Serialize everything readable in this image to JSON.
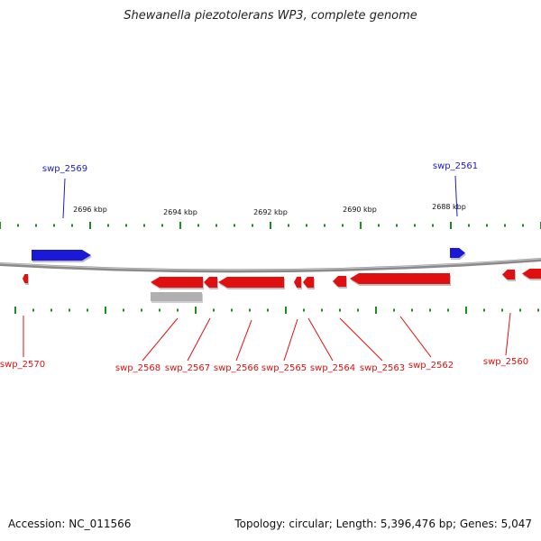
{
  "title": "Shewanella piezotolerans WP3, complete genome",
  "footer": {
    "accession": "Accession: NC_011566",
    "summary": "Topology: circular; Length: 5,396,476 bp; Genes: 5,047"
  },
  "colors": {
    "forward": "#1a1ad6",
    "reverse": "#e01010",
    "other": "#b0b0b0",
    "tick": "#1f8a1f",
    "backbone": "#808080"
  },
  "ticks": [
    "2696 kbp",
    "2694 kbp",
    "2692 kbp",
    "2690 kbp",
    "2688 kbp"
  ],
  "genes": [
    {
      "label": "swp_2569",
      "strand": "+"
    },
    {
      "label": "swp_2561",
      "strand": "+"
    },
    {
      "label": "swp_2570",
      "strand": "-"
    },
    {
      "label": "swp_2568",
      "strand": "-"
    },
    {
      "label": "swp_2567",
      "strand": "-"
    },
    {
      "label": "swp_2566",
      "strand": "-"
    },
    {
      "label": "swp_2565",
      "strand": "-"
    },
    {
      "label": "swp_2564",
      "strand": "-"
    },
    {
      "label": "swp_2563",
      "strand": "-"
    },
    {
      "label": "swp_2562",
      "strand": "-"
    },
    {
      "label": "swp_2560",
      "strand": "-"
    }
  ]
}
